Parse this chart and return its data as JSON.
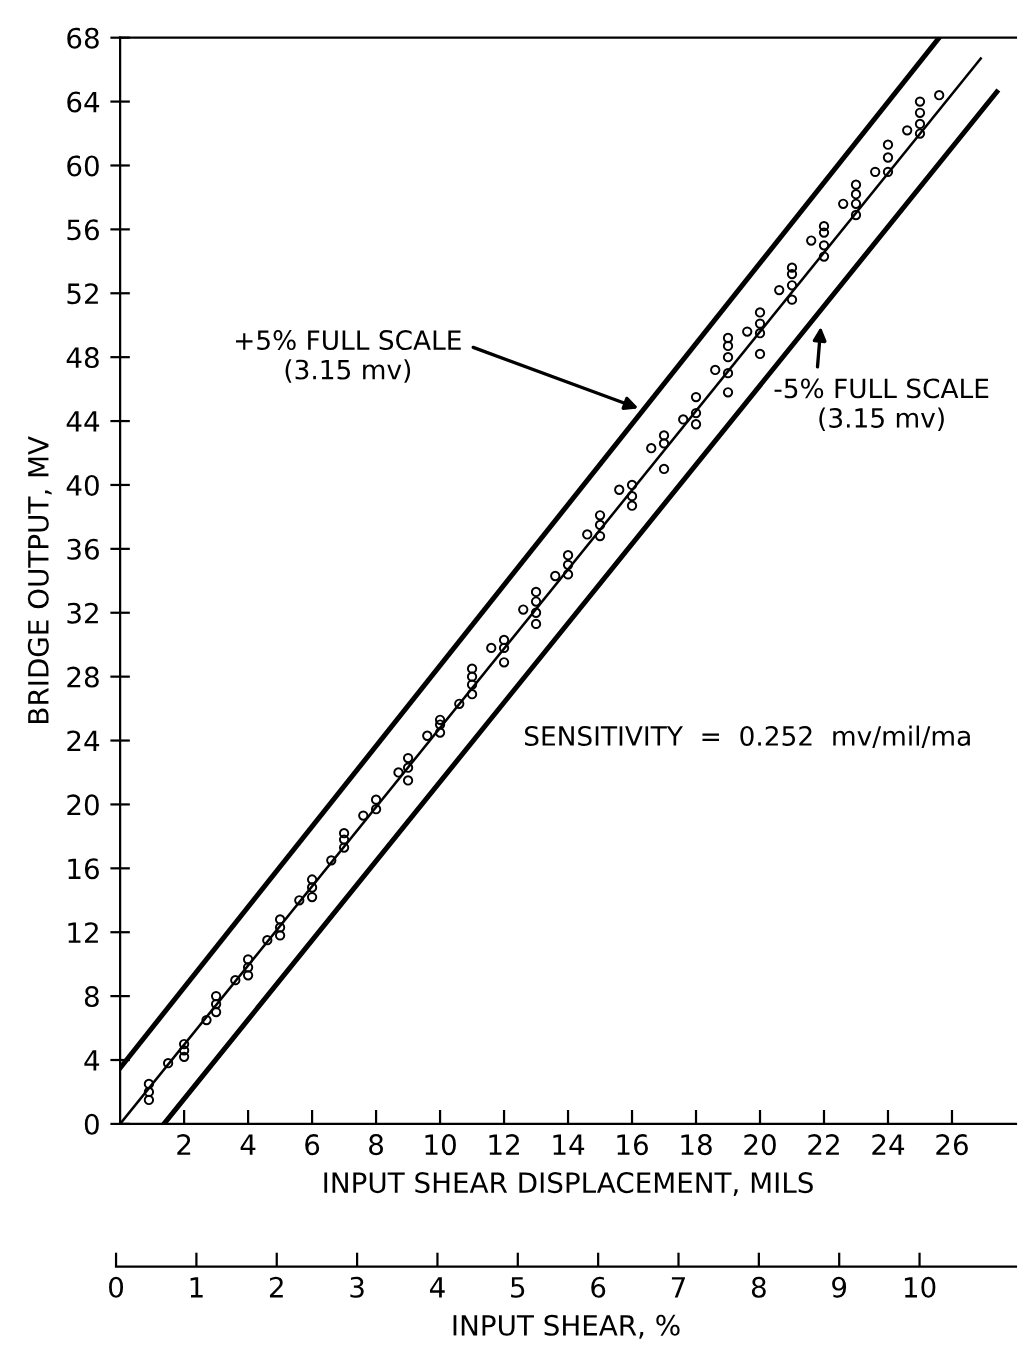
{
  "chart_data": {
    "type": "scatter",
    "xlabel": "INPUT SHEAR DISPLACEMENT, MILS",
    "ylabel": "BRIDGE OUTPUT, MV",
    "x2label": "INPUT SHEAR, %",
    "xlim": [
      0,
      28
    ],
    "xticks": [
      2,
      4,
      6,
      8,
      10,
      12,
      14,
      16,
      18,
      20,
      22,
      24,
      26
    ],
    "ylim": [
      0,
      68
    ],
    "yticks": [
      0,
      4,
      8,
      12,
      16,
      20,
      24,
      28,
      32,
      36,
      40,
      44,
      48,
      52,
      56,
      60,
      64,
      68
    ],
    "x2lim": [
      0,
      11.2
    ],
    "x2ticks": [
      0,
      1,
      2,
      3,
      4,
      5,
      6,
      7,
      8,
      9,
      10
    ],
    "grid": false,
    "legend": false,
    "series": [
      {
        "color": "#000000",
        "marker": "circle",
        "x": [
          0.9,
          0.9,
          0.9,
          1.5,
          2,
          2,
          2,
          2.7,
          3,
          3,
          3,
          3.6,
          4,
          4,
          4,
          4.6,
          5,
          5,
          5,
          5.6,
          6,
          6,
          6,
          6.6,
          7,
          7,
          7,
          7.6,
          8,
          8,
          8.7,
          9,
          9,
          9,
          9.6,
          10,
          10,
          10,
          10.6,
          11,
          11,
          11,
          11,
          11.6,
          12,
          12,
          12,
          12.6,
          13,
          13,
          13,
          13,
          13.6,
          14,
          14,
          14,
          14.6,
          15,
          15,
          15,
          15.6,
          16,
          16,
          16,
          16.6,
          17,
          17,
          17,
          17.6,
          18,
          18,
          18,
          18.6,
          19,
          19,
          19,
          19,
          19,
          19.6,
          20,
          20,
          20,
          20,
          20.6,
          21,
          21,
          21,
          21,
          21.6,
          22,
          22,
          22,
          22,
          22.6,
          23,
          23,
          23,
          23,
          23.6,
          24,
          24,
          24,
          24.6,
          25,
          25,
          25,
          25,
          25.6
        ],
        "values": [
          1.5,
          2.0,
          2.5,
          3.8,
          4.2,
          4.6,
          5.0,
          6.5,
          7.0,
          7.5,
          8.0,
          9.0,
          9.3,
          9.8,
          10.3,
          11.5,
          11.8,
          12.3,
          12.8,
          14.0,
          14.2,
          14.8,
          15.3,
          16.5,
          17.3,
          17.8,
          18.2,
          19.3,
          19.7,
          20.3,
          22.0,
          21.5,
          22.3,
          22.9,
          24.3,
          24.5,
          25.0,
          25.3,
          26.3,
          26.9,
          27.5,
          28.0,
          28.5,
          29.8,
          28.9,
          29.8,
          30.3,
          32.2,
          31.3,
          32.0,
          32.7,
          33.3,
          34.3,
          34.4,
          35.0,
          35.6,
          36.9,
          36.8,
          37.5,
          38.1,
          39.7,
          38.7,
          39.3,
          40.0,
          42.3,
          41.0,
          42.6,
          43.1,
          44.1,
          43.8,
          44.5,
          45.5,
          47.2,
          45.8,
          47.0,
          48.0,
          48.7,
          49.2,
          49.6,
          48.2,
          49.5,
          50.1,
          50.8,
          52.2,
          51.6,
          52.5,
          53.2,
          53.6,
          55.3,
          54.3,
          55.0,
          55.8,
          56.2,
          57.6,
          56.9,
          57.6,
          58.2,
          58.8,
          59.6,
          59.6,
          60.5,
          61.3,
          62.2,
          62.0,
          62.6,
          63.3,
          64.0,
          64.4
        ]
      },
      {
        "type": "line",
        "color": "#000000",
        "line_style": "solid",
        "x": [
          0,
          26.9
        ],
        "values": [
          0,
          66.7
        ]
      },
      {
        "type": "line",
        "color": "#000000",
        "line_style": "solid",
        "x": [
          0,
          25.6
        ],
        "values": [
          3.5,
          68
        ]
      },
      {
        "type": "line",
        "color": "#000000",
        "line_style": "solid",
        "x": [
          1.37,
          27.4
        ],
        "values": [
          0,
          64.6
        ]
      }
    ],
    "annotations": [
      {
        "text": "+5% FULL SCALE\n(3.15 mv)",
        "x": 16.2,
        "y": 44.8
      },
      {
        "text": "-5% FULL SCALE\n(3.15 mv)",
        "x": 21.9,
        "y": 49.9
      },
      "SENSITIVITY  =  0.252  mv/mil/ma"
    ]
  }
}
